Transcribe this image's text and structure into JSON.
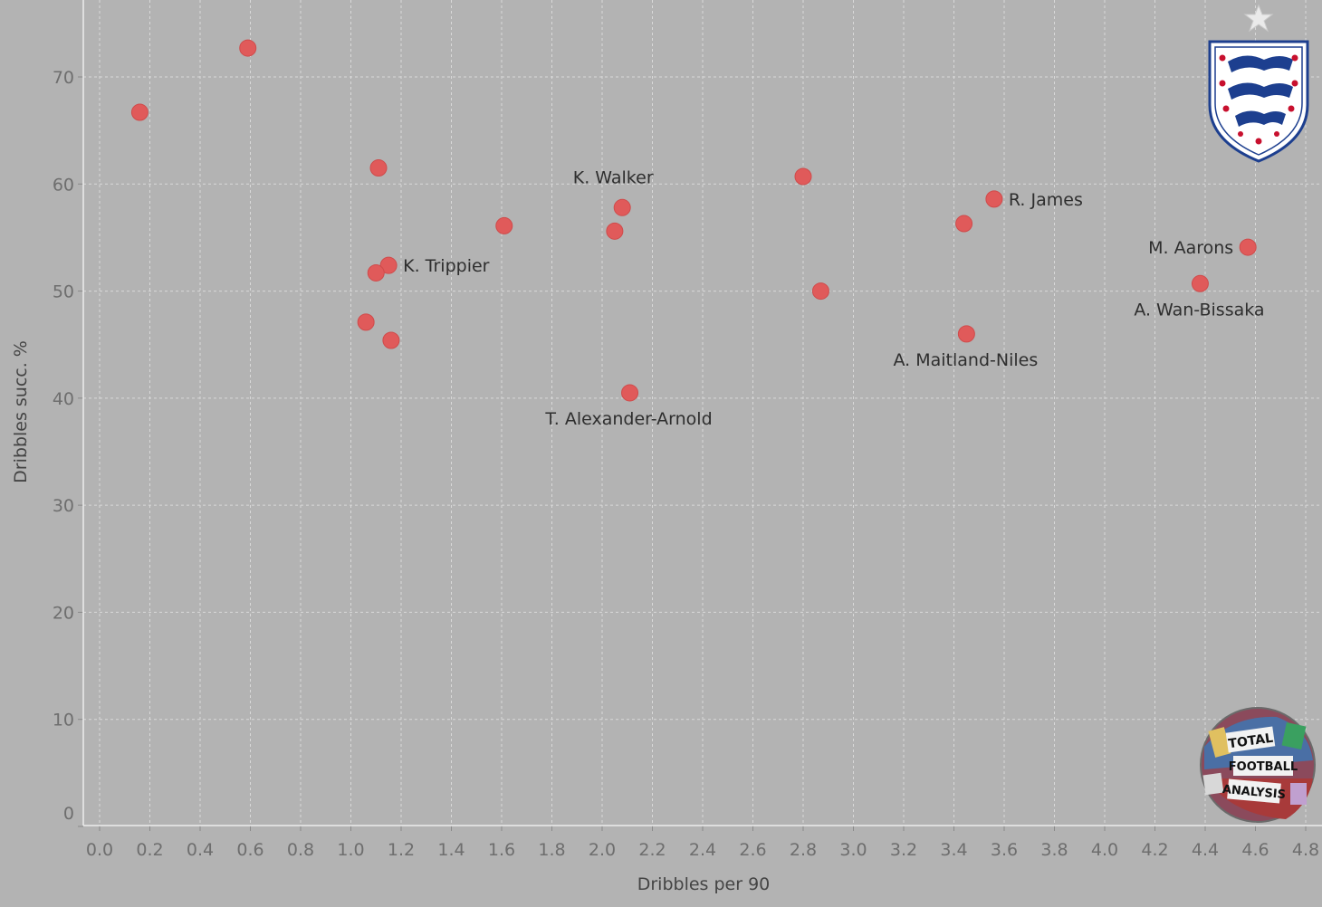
{
  "chart_data": {
    "type": "scatter",
    "xlabel": "Dribbles per 90",
    "ylabel": "Dribbles succ. %",
    "xlim": [
      0.0,
      4.8
    ],
    "ylim": [
      0,
      75
    ],
    "xticks": [
      0.0,
      0.2,
      0.4,
      0.6,
      0.8,
      1.0,
      1.2,
      1.4,
      1.6,
      1.8,
      2.0,
      2.2,
      2.4,
      2.6,
      2.8,
      3.0,
      3.2,
      3.4,
      3.6,
      3.8,
      4.0,
      4.2,
      4.4,
      4.6,
      4.8
    ],
    "xtick_labels": [
      "0.0",
      "0.2",
      "0.4",
      "0.6",
      "0.8",
      "1.0",
      "1.2",
      "1.4",
      "1.6",
      "1.8",
      "2.0",
      "2.2",
      "2.4",
      "2.6",
      "2.8",
      "3.0",
      "3.2",
      "3.4",
      "3.6",
      "3.8",
      "4.0",
      "4.2",
      "4.4",
      "4.6",
      "4.8"
    ],
    "yticks": [
      0,
      10,
      20,
      30,
      40,
      50,
      60,
      70
    ],
    "ytick_labels": [
      "0",
      "10",
      "20",
      "30",
      "40",
      "50",
      "60",
      "70"
    ],
    "grid": true,
    "point_color": "#e05a5a",
    "background": "#b3b3b3",
    "points": [
      {
        "x": 0.16,
        "y": 66.7,
        "label": ""
      },
      {
        "x": 0.59,
        "y": 72.7,
        "label": ""
      },
      {
        "x": 1.11,
        "y": 61.5,
        "label": ""
      },
      {
        "x": 1.15,
        "y": 52.4,
        "label": "K. Trippier"
      },
      {
        "x": 1.1,
        "y": 51.7,
        "label": ""
      },
      {
        "x": 1.06,
        "y": 47.1,
        "label": ""
      },
      {
        "x": 1.16,
        "y": 45.4,
        "label": ""
      },
      {
        "x": 1.61,
        "y": 56.1,
        "label": ""
      },
      {
        "x": 2.08,
        "y": 57.8,
        "label": "K. Walker"
      },
      {
        "x": 2.05,
        "y": 55.6,
        "label": ""
      },
      {
        "x": 2.11,
        "y": 40.5,
        "label": "T. Alexander-Arnold"
      },
      {
        "x": 2.8,
        "y": 60.7,
        "label": ""
      },
      {
        "x": 2.87,
        "y": 50.0,
        "label": ""
      },
      {
        "x": 3.44,
        "y": 56.3,
        "label": ""
      },
      {
        "x": 3.56,
        "y": 58.6,
        "label": "R. James"
      },
      {
        "x": 3.45,
        "y": 46.0,
        "label": "A. Maitland-Niles"
      },
      {
        "x": 4.57,
        "y": 54.1,
        "label": "M. Aarons"
      },
      {
        "x": 4.38,
        "y": 50.7,
        "label": "A. Wan-Bissaka"
      }
    ]
  },
  "logos": {
    "crest": "england-crest",
    "watermark": "total-football-analysis-logo",
    "watermark_text": [
      "TOTAL",
      "FOOTBALL",
      "ANALYSIS"
    ]
  }
}
